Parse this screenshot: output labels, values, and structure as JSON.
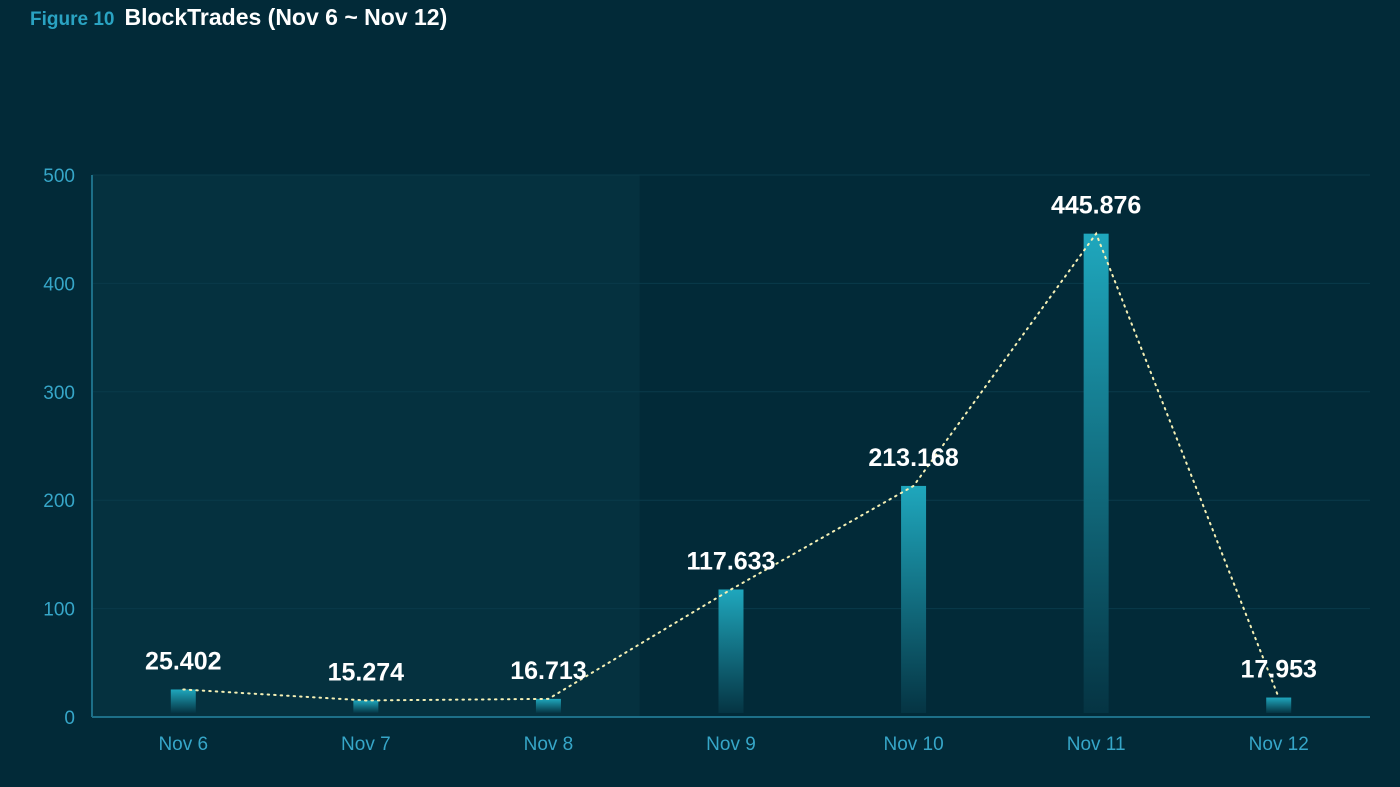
{
  "header": {
    "figure_label": "Figure 10",
    "title": "BlockTrades (Nov 6 ~ Nov 12)"
  },
  "colors": {
    "background": "#022a38",
    "highlight_band": "#05313f",
    "bar_top": "#1fa7bd",
    "bar_bottom": "#053443",
    "axis": "#1d6f88",
    "gridline": "#0a3a4a",
    "tick_text": "#36a6c8",
    "trend_line": "#f5f0b5",
    "label_text": "#ffffff"
  },
  "chart_data": {
    "type": "bar",
    "title": "BlockTrades (Nov 6 ~ Nov 12)",
    "categories": [
      "Nov 6",
      "Nov 7",
      "Nov 8",
      "Nov 9",
      "Nov 10",
      "Nov 11",
      "Nov 12"
    ],
    "values": [
      25.402,
      15.274,
      16.713,
      117.633,
      213.168,
      445.876,
      17.953
    ],
    "value_labels": [
      "25.402",
      "15.274",
      "16.713",
      "117.633",
      "213.168",
      "445.876",
      "17.953"
    ],
    "y_ticks": [
      "0",
      "100",
      "200",
      "300",
      "400",
      "500"
    ],
    "ylim": [
      0,
      500
    ],
    "grid": true,
    "trend_line": "dotted",
    "highlighted_categories": [
      "Nov 6",
      "Nov 7",
      "Nov 8"
    ]
  }
}
